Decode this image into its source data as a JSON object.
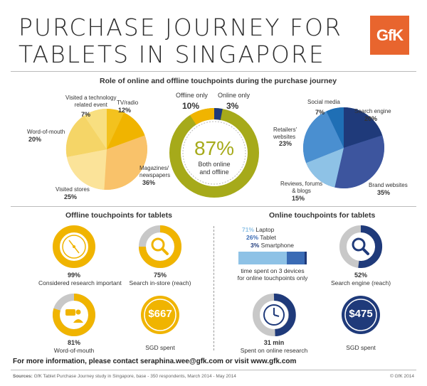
{
  "title": {
    "line1": "PURCHASE JOURNEY FOR",
    "line2": "TABLETS IN SINGAPORE"
  },
  "logo": "GfK",
  "colors": {
    "brand": "#e8652e",
    "yellow_dark": "#f0b400",
    "yellow_light": "#f9d979",
    "olive": "#a6aa1a",
    "navy": "#1f3a7a",
    "blue_light": "#8ec2e6",
    "grey": "#c8c8c8"
  },
  "role_section": {
    "heading": "Role of online and offline touchpoints during the purchase journey",
    "offline_pie": {
      "slices": [
        {
          "label": "Visited a technology related event",
          "label_line1": "Visited a technology",
          "label_line2": "related event",
          "value": "7%"
        },
        {
          "label": "TV/radio",
          "value": "12%"
        },
        {
          "label": "Magazines/ newspapers",
          "label_line1": "Magazines/",
          "label_line2": "newspapers",
          "value": "36%"
        },
        {
          "label": "Visited stores",
          "value": "25%"
        },
        {
          "label": "Word-of-mouth",
          "value": "20%"
        }
      ]
    },
    "center_donut": {
      "offline_only_label": "Offline only",
      "offline_only_value": "10%",
      "online_only_label": "Online only",
      "online_only_value": "3%",
      "big_value": "87%",
      "big_label_line1": "Both online",
      "big_label_line2": "and offline"
    },
    "online_pie": {
      "slices": [
        {
          "label": "Social media",
          "value": "7%"
        },
        {
          "label": "Search engine",
          "value": "20%"
        },
        {
          "label": "Brand websites",
          "value": "35%"
        },
        {
          "label": "Reviews, forums & blogs",
          "label_line1": "Reviews, forums",
          "label_line2": "& blogs",
          "value": "15%"
        },
        {
          "label": "Retailers' websites",
          "label_line1": "Retailers'",
          "label_line2": "websites",
          "value": "23%"
        }
      ]
    }
  },
  "offline_section": {
    "heading": "Offline touchpoints for tablets",
    "items": [
      {
        "value": "99%",
        "label": "Considered research important"
      },
      {
        "value": "75%",
        "label": "Search in-store (reach)"
      },
      {
        "value": "81%",
        "label": "Word-of-mouth"
      },
      {
        "badge": "$667",
        "label": "SGD spent"
      }
    ]
  },
  "online_section": {
    "heading": "Online touchpoints for tablets",
    "devices": [
      {
        "pct": "71%",
        "name": "Laptop"
      },
      {
        "pct": "26%",
        "name": "Tablet"
      },
      {
        "pct": "3%",
        "name": "Smartphone"
      }
    ],
    "device_note_line1": "time spent on 3 devices",
    "device_note_line2": "for online touchpoints only",
    "search_value": "52%",
    "search_label": "Search engine (reach)",
    "time_value": "31 min",
    "time_label": "Spent on online research",
    "badge": "$475",
    "badge_label": "SGD spent"
  },
  "footer": {
    "info_prefix": "For more information, please contact",
    "info_email": "seraphina.wee@gfk.com",
    "info_mid": "or visit",
    "info_site": "www.gfk.com",
    "source_label": "Sources:",
    "source_text": "GfK Tablet Purchase Journey study in Singapore, base - 350 respondents, March 2014 - May 2014",
    "copyright": "© GfK 2014"
  }
}
